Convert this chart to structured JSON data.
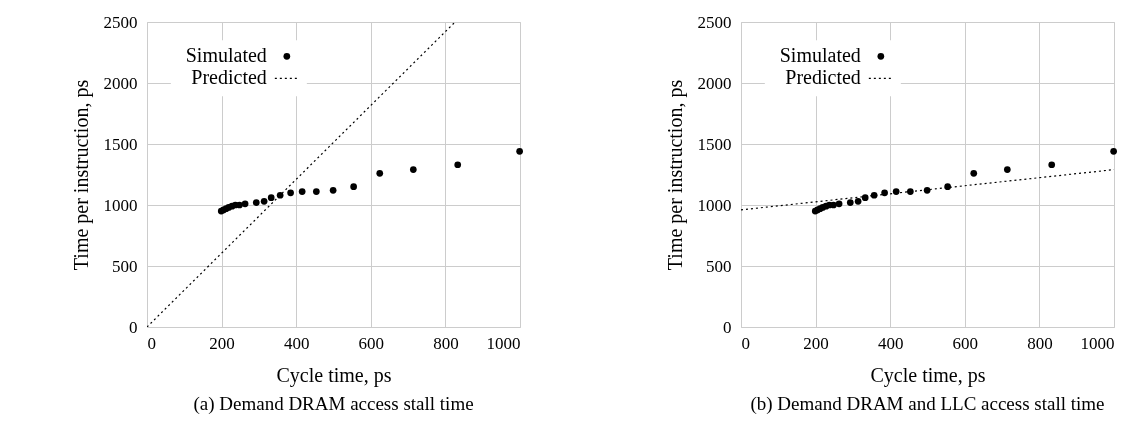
{
  "chart_data": [
    {
      "type": "scatter",
      "title": "(a) Demand DRAM access stall time",
      "xlabel": "Cycle time, ps",
      "ylabel": "Time per instruction, ps",
      "xlim": [
        0,
        1000
      ],
      "ylim": [
        0,
        2500
      ],
      "xticks": [
        0,
        200,
        400,
        600,
        800,
        1000
      ],
      "yticks": [
        0,
        500,
        1000,
        1500,
        2000,
        2500
      ],
      "grid": true,
      "legend": "top left",
      "series": [
        {
          "name": "Simulated",
          "color": "#000000",
          "marker": "circle",
          "x": [
            199,
            205,
            212,
            219,
            228,
            237,
            248,
            263,
            293,
            314,
            333,
            357,
            385,
            416,
            454,
            499,
            554,
            624,
            714,
            833,
            999
          ],
          "values": [
            950,
            960,
            970,
            980,
            990,
            1000,
            1000,
            1010,
            1020,
            1030,
            1060,
            1080,
            1100,
            1110,
            1110,
            1120,
            1150,
            1260,
            1290,
            1330,
            1440
          ]
        },
        {
          "name": "Predicted",
          "type": "line",
          "marker": "none",
          "line_style": "dotted",
          "color": "#000000",
          "x": [
            0,
            826
          ],
          "values": [
            0,
            2500
          ]
        }
      ]
    },
    {
      "type": "scatter",
      "title": "(b) Demand DRAM and LLC access stall time",
      "xlabel": "Cycle time, ps",
      "ylabel": "Time per instruction, ps",
      "xlim": [
        0,
        1000
      ],
      "ylim": [
        0,
        2500
      ],
      "xticks": [
        0,
        200,
        400,
        600,
        800,
        1000
      ],
      "yticks": [
        0,
        500,
        1000,
        1500,
        2000,
        2500
      ],
      "grid": true,
      "legend": "top left",
      "series": [
        {
          "name": "Simulated",
          "color": "#000000",
          "marker": "circle",
          "x": [
            199,
            205,
            212,
            219,
            228,
            237,
            248,
            263,
            293,
            314,
            333,
            357,
            385,
            416,
            454,
            499,
            554,
            624,
            714,
            833,
            999
          ],
          "values": [
            950,
            960,
            970,
            980,
            990,
            1000,
            1000,
            1010,
            1020,
            1030,
            1060,
            1080,
            1100,
            1110,
            1110,
            1120,
            1150,
            1260,
            1290,
            1330,
            1440
          ]
        },
        {
          "name": "Predicted",
          "type": "line",
          "marker": "none",
          "line_style": "dotted",
          "color": "#000000",
          "x": [
            0,
            1000
          ],
          "values": [
            960,
            1290
          ]
        }
      ]
    }
  ]
}
